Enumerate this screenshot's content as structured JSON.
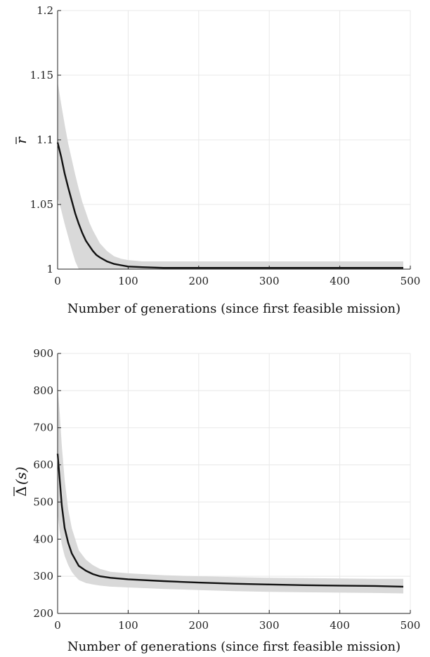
{
  "chart_data": [
    {
      "type": "line",
      "title": "",
      "xlabel": "Number of generations (since first feasible mission)",
      "ylabel": "r̄",
      "ylabel_main": "r",
      "ylabel_unit": "",
      "xlim": [
        0,
        500
      ],
      "ylim": [
        1,
        1.2
      ],
      "xticks": [
        0,
        100,
        200,
        300,
        400,
        500
      ],
      "yticks": [
        1,
        1.05,
        1.1,
        1.15,
        1.2
      ],
      "ytick_labels": [
        "1",
        "1.05",
        "1.1",
        "1.15",
        "1.2"
      ],
      "grid": true,
      "colors": {
        "line": "#111111",
        "band": "#d9d9d9",
        "grid": "#e8e8e8"
      },
      "series": [
        {
          "x": [
            0,
            5,
            10,
            15,
            20,
            25,
            30,
            35,
            40,
            45,
            50,
            55,
            60,
            70,
            80,
            90,
            100,
            120,
            150,
            200,
            250,
            300,
            350,
            400,
            450,
            490
          ],
          "y": [
            1.098,
            1.087,
            1.074,
            1.063,
            1.053,
            1.043,
            1.035,
            1.028,
            1.022,
            1.018,
            1.014,
            1.011,
            1.009,
            1.006,
            1.004,
            1.003,
            1.002,
            1.0015,
            1.001,
            1.001,
            1.001,
            1.001,
            1.001,
            1.001,
            1.001,
            1.001
          ],
          "upper": [
            1.145,
            1.128,
            1.112,
            1.097,
            1.085,
            1.073,
            1.062,
            1.052,
            1.044,
            1.036,
            1.03,
            1.025,
            1.02,
            1.014,
            1.01,
            1.008,
            1.007,
            1.006,
            1.006,
            1.006,
            1.006,
            1.006,
            1.006,
            1.006,
            1.006,
            1.006
          ],
          "lower": [
            1.055,
            1.046,
            1.035,
            1.025,
            1.015,
            1.006,
            1.0,
            1.0,
            1.0,
            1.0,
            1.0,
            1.0,
            1.0,
            1.0,
            1.0,
            1.0,
            1.0,
            1.0,
            1.0,
            1.0,
            1.0,
            1.0,
            1.0,
            1.0,
            1.0,
            1.0
          ]
        }
      ]
    },
    {
      "type": "line",
      "title": "",
      "xlabel": "Number of generations (since first feasible mission)",
      "ylabel": "Δ̄(s)",
      "ylabel_main": "Δ",
      "ylabel_unit": "(s)",
      "xlim": [
        0,
        500
      ],
      "ylim": [
        200,
        900
      ],
      "xticks": [
        0,
        100,
        200,
        300,
        400,
        500
      ],
      "yticks": [
        200,
        300,
        400,
        500,
        600,
        700,
        800,
        900
      ],
      "ytick_labels": [
        "200",
        "300",
        "400",
        "500",
        "600",
        "700",
        "800",
        "900"
      ],
      "grid": true,
      "colors": {
        "line": "#111111",
        "band": "#d9d9d9",
        "grid": "#e8e8e8"
      },
      "series": [
        {
          "x": [
            0,
            3,
            6,
            10,
            15,
            20,
            25,
            30,
            40,
            50,
            60,
            75,
            100,
            150,
            200,
            250,
            300,
            350,
            400,
            450,
            490
          ],
          "y": [
            630,
            560,
            490,
            430,
            390,
            362,
            345,
            328,
            315,
            306,
            300,
            296,
            292,
            287,
            283,
            280,
            278,
            276,
            275,
            274,
            272
          ],
          "upper": [
            810,
            740,
            650,
            560,
            480,
            430,
            400,
            370,
            345,
            330,
            320,
            312,
            308,
            303,
            300,
            298,
            296,
            295,
            294,
            293,
            293
          ],
          "lower": [
            470,
            420,
            385,
            355,
            330,
            312,
            300,
            290,
            282,
            278,
            275,
            272,
            270,
            266,
            263,
            260,
            258,
            257,
            256,
            255,
            254
          ]
        }
      ]
    }
  ]
}
